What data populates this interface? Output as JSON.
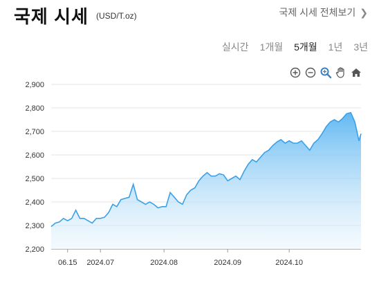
{
  "header": {
    "title": "국제 시세",
    "unit": "(USD/T.oz)",
    "all_link": "국제 시세 전체보기",
    "all_link_icon": "chevron-right-icon"
  },
  "periods": [
    {
      "label": "실시간",
      "active": false
    },
    {
      "label": "1개월",
      "active": false
    },
    {
      "label": "5개월",
      "active": true
    },
    {
      "label": "1년",
      "active": false
    },
    {
      "label": "3년",
      "active": false
    }
  ],
  "tools": [
    "zoom-in-icon",
    "zoom-out-icon",
    "magnify-icon",
    "pan-hand-icon",
    "home-icon"
  ],
  "chart_data": {
    "type": "area",
    "title": "",
    "xlabel": "",
    "ylabel": "",
    "ylim": [
      2200,
      2900
    ],
    "yticks": [
      2200,
      2300,
      2400,
      2500,
      2600,
      2700,
      2800,
      2900
    ],
    "ytick_labels": [
      "2,200",
      "2,300",
      "2,400",
      "2,500",
      "2,600",
      "2,700",
      "2,800",
      "2,900"
    ],
    "xlim": [
      "2024-06-07",
      "2024-11-05"
    ],
    "xticks": [
      {
        "label": "06.15",
        "date": "2024-06-15"
      },
      {
        "label": "2024.07",
        "date": "2024-07-01"
      },
      {
        "label": "2024.08",
        "date": "2024-08-01"
      },
      {
        "label": "2024.09",
        "date": "2024-09-01"
      },
      {
        "label": "2024.10",
        "date": "2024-10-01"
      }
    ],
    "grid": "horizontal",
    "legend": "none",
    "series": [
      {
        "color": "#3aa0e8",
        "x": [
          "2024-06-07",
          "2024-06-09",
          "2024-06-11",
          "2024-06-13",
          "2024-06-15",
          "2024-06-17",
          "2024-06-19",
          "2024-06-21",
          "2024-06-23",
          "2024-06-25",
          "2024-06-27",
          "2024-06-29",
          "2024-07-01",
          "2024-07-03",
          "2024-07-05",
          "2024-07-07",
          "2024-07-09",
          "2024-07-11",
          "2024-07-13",
          "2024-07-15",
          "2024-07-17",
          "2024-07-19",
          "2024-07-21",
          "2024-07-23",
          "2024-07-25",
          "2024-07-27",
          "2024-07-29",
          "2024-07-31",
          "2024-08-02",
          "2024-08-04",
          "2024-08-06",
          "2024-08-08",
          "2024-08-10",
          "2024-08-12",
          "2024-08-14",
          "2024-08-16",
          "2024-08-18",
          "2024-08-20",
          "2024-08-22",
          "2024-08-24",
          "2024-08-26",
          "2024-08-28",
          "2024-08-30",
          "2024-09-01",
          "2024-09-03",
          "2024-09-05",
          "2024-09-07",
          "2024-09-09",
          "2024-09-11",
          "2024-09-13",
          "2024-09-15",
          "2024-09-17",
          "2024-09-19",
          "2024-09-21",
          "2024-09-23",
          "2024-09-25",
          "2024-09-27",
          "2024-09-29",
          "2024-10-01",
          "2024-10-03",
          "2024-10-05",
          "2024-10-07",
          "2024-10-09",
          "2024-10-11",
          "2024-10-13",
          "2024-10-15",
          "2024-10-17",
          "2024-10-19",
          "2024-10-21",
          "2024-10-23",
          "2024-10-25",
          "2024-10-27",
          "2024-10-29",
          "2024-10-31",
          "2024-11-02",
          "2024-11-04",
          "2024-11-05"
        ],
        "y": [
          2295,
          2310,
          2315,
          2330,
          2320,
          2330,
          2365,
          2330,
          2330,
          2320,
          2310,
          2330,
          2330,
          2335,
          2355,
          2390,
          2380,
          2410,
          2415,
          2420,
          2475,
          2410,
          2400,
          2390,
          2400,
          2390,
          2375,
          2380,
          2380,
          2440,
          2420,
          2400,
          2390,
          2430,
          2450,
          2460,
          2490,
          2510,
          2525,
          2510,
          2510,
          2520,
          2515,
          2490,
          2500,
          2510,
          2495,
          2530,
          2560,
          2580,
          2570,
          2590,
          2610,
          2620,
          2640,
          2655,
          2665,
          2650,
          2660,
          2650,
          2650,
          2660,
          2640,
          2620,
          2650,
          2665,
          2690,
          2720,
          2740,
          2750,
          2740,
          2755,
          2775,
          2780,
          2740,
          2660,
          2690
        ]
      }
    ]
  }
}
